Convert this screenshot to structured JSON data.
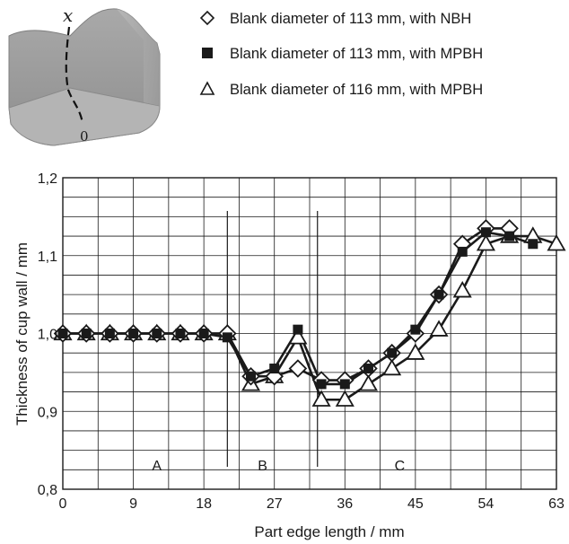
{
  "chart_data": {
    "type": "line",
    "xlabel": "Part edge length / mm",
    "ylabel": "Thickness of cup wall / mm",
    "xlim": [
      0,
      63
    ],
    "ylim": [
      0.8,
      1.2
    ],
    "x_ticks": [
      "0",
      "9",
      "18",
      "27",
      "36",
      "45",
      "54",
      "63"
    ],
    "y_ticks": [
      "0,8",
      "0,9",
      "1,0",
      "1,1",
      "1,2"
    ],
    "grid": true,
    "legend_position": "top-right",
    "regions": [
      {
        "label": "A",
        "x": 12
      },
      {
        "label": "B",
        "x": 25.5
      },
      {
        "label": "C",
        "x": 43
      }
    ],
    "region_dividers": [
      21,
      32.5
    ],
    "series": [
      {
        "name": "Blank diameter of 113 mm, with NBH",
        "marker": "diamond",
        "points": [
          [
            0,
            1.0
          ],
          [
            3,
            1.0
          ],
          [
            6,
            1.0
          ],
          [
            9,
            1.0
          ],
          [
            12,
            1.0
          ],
          [
            15,
            1.0
          ],
          [
            18,
            1.0
          ],
          [
            21,
            1.0
          ],
          [
            24,
            0.945
          ],
          [
            27,
            0.945
          ],
          [
            30,
            0.955
          ],
          [
            33,
            0.94
          ],
          [
            36,
            0.94
          ],
          [
            39,
            0.955
          ],
          [
            42,
            0.975
          ],
          [
            45,
            1.0
          ],
          [
            48,
            1.05
          ],
          [
            51,
            1.115
          ],
          [
            54,
            1.135
          ],
          [
            57,
            1.135
          ]
        ]
      },
      {
        "name": "Blank diameter of 113 mm, with MPBH",
        "marker": "square",
        "points": [
          [
            0,
            1.0
          ],
          [
            3,
            1.0
          ],
          [
            6,
            1.0
          ],
          [
            9,
            1.0
          ],
          [
            12,
            1.0
          ],
          [
            15,
            1.0
          ],
          [
            18,
            1.0
          ],
          [
            21,
            0.995
          ],
          [
            24,
            0.945
          ],
          [
            27,
            0.955
          ],
          [
            30,
            1.005
          ],
          [
            33,
            0.935
          ],
          [
            36,
            0.935
          ],
          [
            39,
            0.955
          ],
          [
            42,
            0.975
          ],
          [
            45,
            1.005
          ],
          [
            48,
            1.05
          ],
          [
            51,
            1.105
          ],
          [
            54,
            1.13
          ],
          [
            57,
            1.125
          ],
          [
            60,
            1.115
          ]
        ]
      },
      {
        "name": "Blank diameter of 116 mm, with MPBH",
        "marker": "triangle",
        "points": [
          [
            0,
            1.0
          ],
          [
            3,
            1.0
          ],
          [
            6,
            1.0
          ],
          [
            9,
            1.0
          ],
          [
            12,
            1.0
          ],
          [
            15,
            1.0
          ],
          [
            18,
            1.0
          ],
          [
            21,
            1.0
          ],
          [
            24,
            0.935
          ],
          [
            27,
            0.945
          ],
          [
            30,
            0.995
          ],
          [
            33,
            0.915
          ],
          [
            36,
            0.915
          ],
          [
            39,
            0.935
          ],
          [
            42,
            0.955
          ],
          [
            45,
            0.975
          ],
          [
            48,
            1.005
          ],
          [
            51,
            1.055
          ],
          [
            54,
            1.115
          ],
          [
            57,
            1.125
          ],
          [
            60,
            1.125
          ],
          [
            63,
            1.115
          ]
        ]
      }
    ]
  },
  "inset": {
    "axis_label": "x",
    "origin_label": "0"
  }
}
